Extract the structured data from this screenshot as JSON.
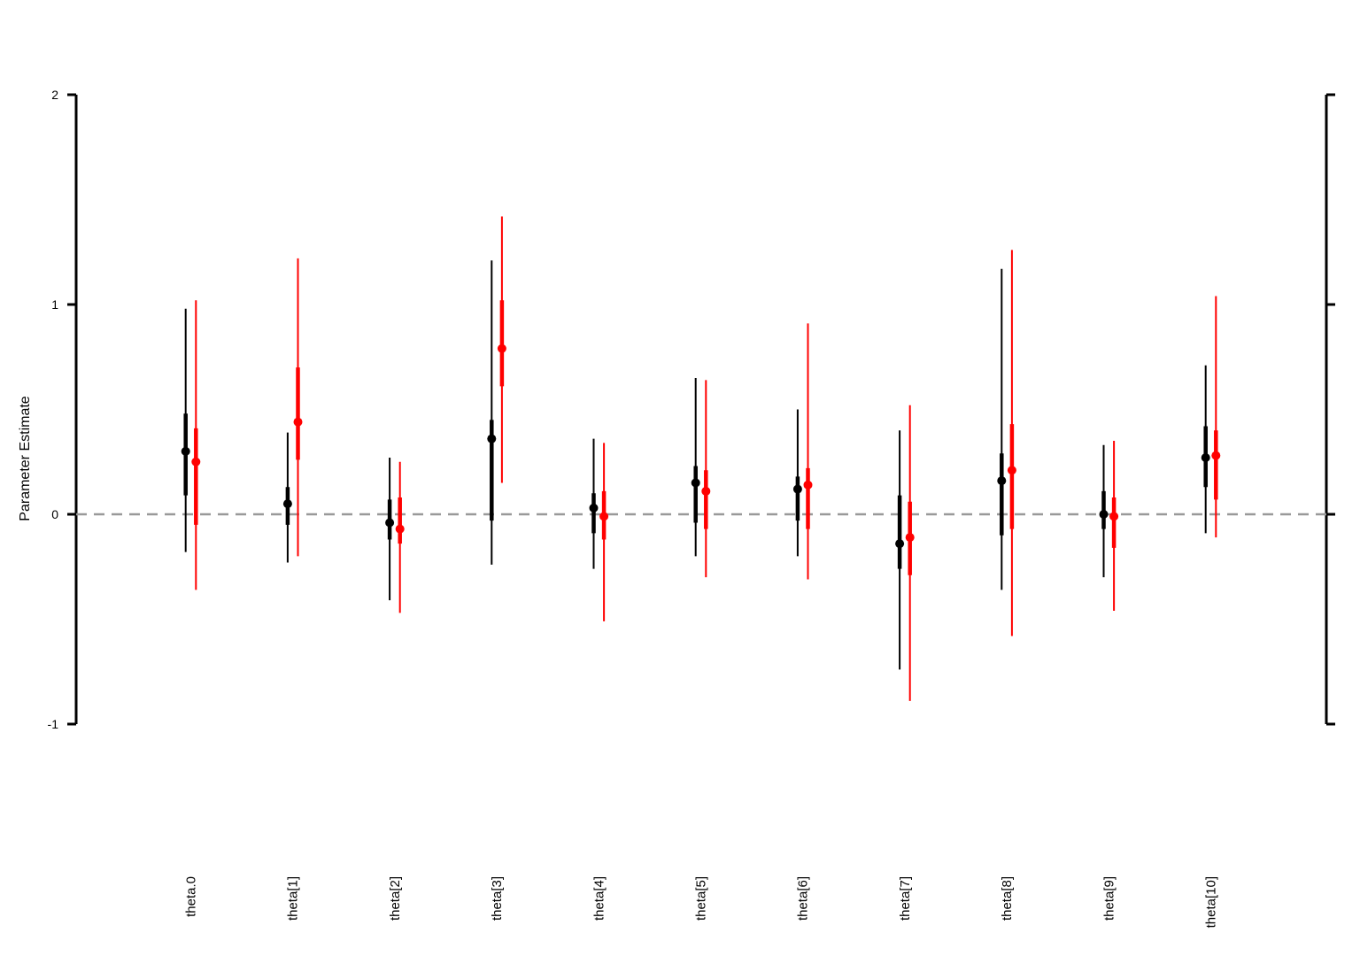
{
  "chart_data": {
    "type": "scatter",
    "ylabel": "Parameter Estimate",
    "ylim": [
      -1,
      2
    ],
    "yticks": [
      "-1",
      "0",
      "1",
      "2"
    ],
    "reference_line": 0,
    "categories": [
      "theta.0",
      "theta[1]",
      "theta[2]",
      "theta[3]",
      "theta[4]",
      "theta[5]",
      "theta[6]",
      "theta[7]",
      "theta[8]",
      "theta[9]",
      "theta[10]"
    ],
    "series": [
      {
        "color": "#000000",
        "points": [
          {
            "est": 0.3,
            "inner": [
              0.09,
              0.48
            ],
            "outer": [
              -0.18,
              0.98
            ]
          },
          {
            "est": 0.05,
            "inner": [
              -0.05,
              0.13
            ],
            "outer": [
              -0.23,
              0.39
            ]
          },
          {
            "est": -0.04,
            "inner": [
              -0.12,
              0.07
            ],
            "outer": [
              -0.41,
              0.27
            ]
          },
          {
            "est": 0.36,
            "inner": [
              -0.03,
              0.45
            ],
            "outer": [
              -0.24,
              1.21
            ]
          },
          {
            "est": 0.03,
            "inner": [
              -0.09,
              0.1
            ],
            "outer": [
              -0.26,
              0.36
            ]
          },
          {
            "est": 0.15,
            "inner": [
              -0.04,
              0.23
            ],
            "outer": [
              -0.2,
              0.65
            ]
          },
          {
            "est": 0.12,
            "inner": [
              -0.03,
              0.18
            ],
            "outer": [
              -0.2,
              0.5
            ]
          },
          {
            "est": -0.14,
            "inner": [
              -0.26,
              0.09
            ],
            "outer": [
              -0.74,
              0.4
            ]
          },
          {
            "est": 0.16,
            "inner": [
              -0.1,
              0.29
            ],
            "outer": [
              -0.36,
              1.17
            ]
          },
          {
            "est": 0.0,
            "inner": [
              -0.07,
              0.11
            ],
            "outer": [
              -0.3,
              0.33
            ]
          },
          {
            "est": 0.27,
            "inner": [
              0.13,
              0.42
            ],
            "outer": [
              -0.09,
              0.71
            ]
          }
        ]
      },
      {
        "color": "#ff0000",
        "points": [
          {
            "est": 0.25,
            "inner": [
              -0.05,
              0.41
            ],
            "outer": [
              -0.36,
              1.02
            ]
          },
          {
            "est": 0.44,
            "inner": [
              0.26,
              0.7
            ],
            "outer": [
              -0.2,
              1.22
            ]
          },
          {
            "est": -0.07,
            "inner": [
              -0.14,
              0.08
            ],
            "outer": [
              -0.47,
              0.25
            ]
          },
          {
            "est": 0.79,
            "inner": [
              0.61,
              1.02
            ],
            "outer": [
              0.15,
              1.42
            ]
          },
          {
            "est": -0.01,
            "inner": [
              -0.12,
              0.11
            ],
            "outer": [
              -0.51,
              0.34
            ]
          },
          {
            "est": 0.11,
            "inner": [
              -0.07,
              0.21
            ],
            "outer": [
              -0.3,
              0.64
            ]
          },
          {
            "est": 0.14,
            "inner": [
              -0.07,
              0.22
            ],
            "outer": [
              -0.31,
              0.91
            ]
          },
          {
            "est": -0.11,
            "inner": [
              -0.29,
              0.06
            ],
            "outer": [
              -0.89,
              0.52
            ]
          },
          {
            "est": 0.21,
            "inner": [
              -0.07,
              0.43
            ],
            "outer": [
              -0.58,
              1.26
            ]
          },
          {
            "est": -0.01,
            "inner": [
              -0.16,
              0.08
            ],
            "outer": [
              -0.46,
              0.35
            ]
          },
          {
            "est": 0.28,
            "inner": [
              0.07,
              0.4
            ],
            "outer": [
              -0.11,
              1.04
            ]
          }
        ]
      }
    ],
    "colors": {
      "reference_line": "#999999"
    }
  }
}
